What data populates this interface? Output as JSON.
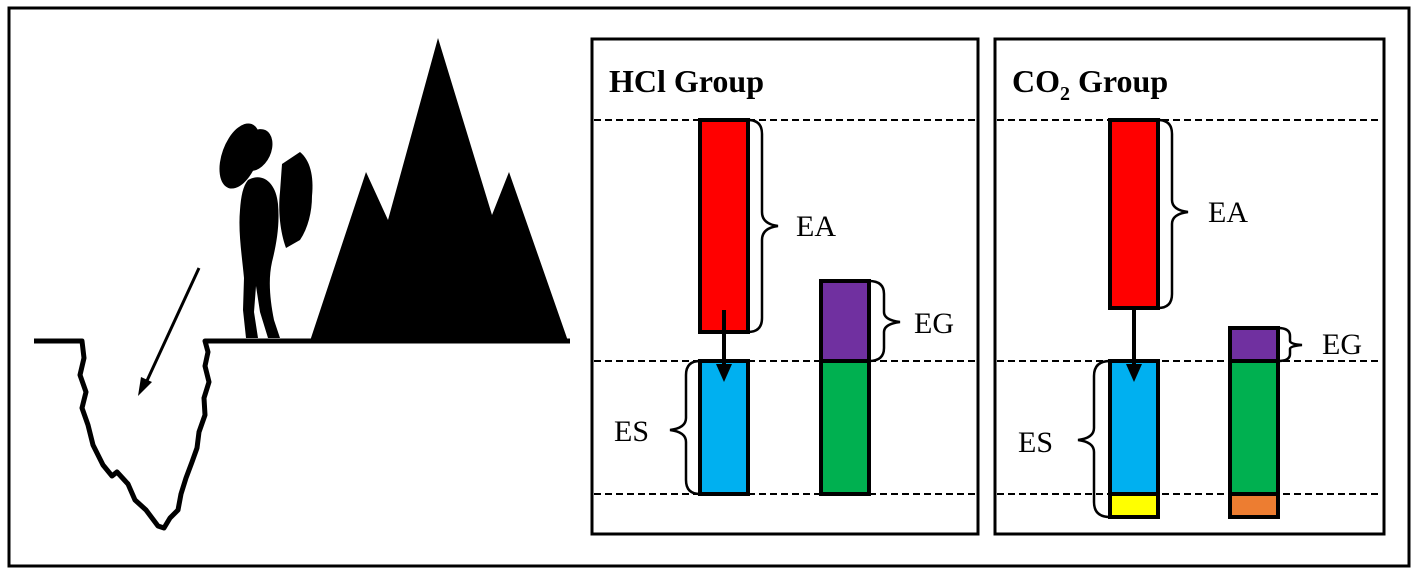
{
  "colors": {
    "outline": "#000000",
    "ea": "#ff0000",
    "es": "#00b0f0",
    "eg": "#7030a0",
    "green": "#00b050",
    "yellow": "#ffff00",
    "orange": "#ed7d31"
  },
  "illustration": {
    "icons": [
      "hiker-icon",
      "mountain-icon",
      "pit-icon",
      "fall-arrow-icon"
    ]
  },
  "hcl_panel": {
    "title": "HCl Group",
    "labels": {
      "ea": "EA",
      "es": "ES",
      "eg": "EG"
    }
  },
  "co2_panel": {
    "title_main": "CO",
    "title_sub": "2",
    "title_rest": " Group",
    "labels": {
      "ea": "EA",
      "es": "ES",
      "eg": "EG"
    }
  }
}
